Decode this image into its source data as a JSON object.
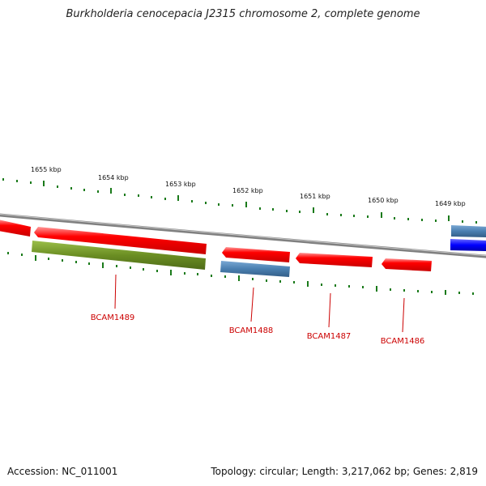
{
  "title": "Burkholderia cenocepacia J2315 chromosome 2, complete genome",
  "footer": {
    "accession": "Accession: NC_011001",
    "topology": "Topology: circular; Length: 3,217,062 bp; Genes: 2,819"
  },
  "kbp_labels": [
    "1655 kbp",
    "1654 kbp",
    "1653 kbp",
    "1652 kbp",
    "1651 kbp",
    "1650 kbp",
    "1649 kbp"
  ],
  "gene_labels": [
    "BCAM1489",
    "BCAM1488",
    "BCAM1487",
    "BCAM1486"
  ],
  "colors": {
    "forward_cds": "#ee0000",
    "reverse_cds_olive": "#6b8e23",
    "reverse_cds_steel": "#4a7fb0",
    "highlight_blue": "#0000ff",
    "backbone": "#808080",
    "tick": "#1a7a1a",
    "label": "#cc0000"
  }
}
